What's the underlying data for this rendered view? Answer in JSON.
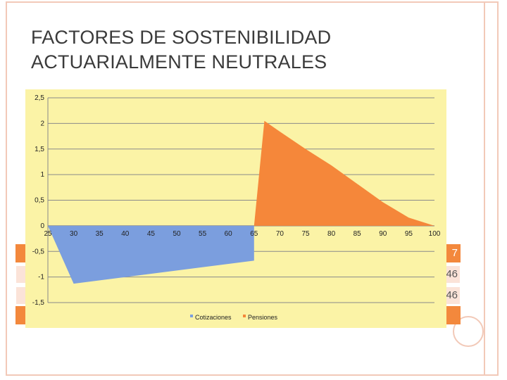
{
  "slide": {
    "title": "FACTORES DE SOSTENIBILIDAD\nACTUARIALMENTE NEUTRALES",
    "background_fragments": [
      "7",
      "46",
      "46"
    ],
    "colors": {
      "frame": "#f2c9b8",
      "table_header": "#f3883c",
      "table_row": "#fbe3d8"
    }
  },
  "chart_data": {
    "type": "area",
    "title": "",
    "xlabel": "",
    "ylabel": "",
    "x_ticks": [
      25,
      30,
      35,
      40,
      45,
      50,
      55,
      60,
      65,
      70,
      75,
      80,
      85,
      90,
      95,
      100
    ],
    "y_ticks": [
      2.5,
      2,
      1.5,
      1,
      0.5,
      0,
      -0.5,
      -1,
      -1.5
    ],
    "x_tick_labels": [
      "25",
      "30",
      "35",
      "40",
      "45",
      "50",
      "55",
      "60",
      "65",
      "70",
      "75",
      "80",
      "85",
      "90",
      "95",
      "100"
    ],
    "y_tick_labels": [
      "2,5",
      "2",
      "1,5",
      "1",
      "0,5",
      "0",
      "-0,5",
      "-1",
      "-1,5"
    ],
    "xlim": [
      25,
      100
    ],
    "ylim": [
      -1.5,
      2.5
    ],
    "grid": true,
    "plot_background": "#fbf3a6",
    "legend": {
      "placement": "bottom",
      "entries": [
        "Cotizaciones",
        "Pensiones"
      ]
    },
    "series": [
      {
        "name": "Cotizaciones",
        "color": "#7b9ede",
        "x": [
          25,
          30,
          65
        ],
        "y": [
          0,
          -1.13,
          -0.68
        ]
      },
      {
        "name": "Pensiones",
        "color": "#f5873a",
        "x": [
          65,
          67,
          70,
          75,
          80,
          85,
          90,
          95,
          100
        ],
        "y": [
          0,
          2.05,
          1.84,
          1.5,
          1.18,
          0.82,
          0.46,
          0.16,
          0
        ]
      }
    ]
  }
}
